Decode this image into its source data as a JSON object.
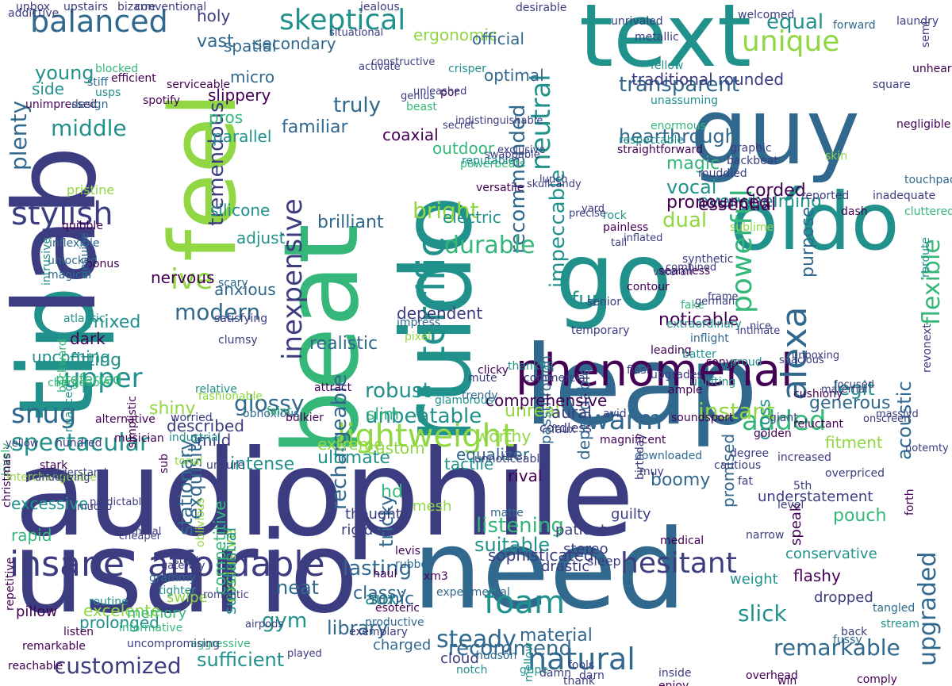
{
  "palette": {
    "dark_purple": "#440154",
    "indigo": "#3b3d80",
    "slate_blue": "#31688e",
    "teal": "#21918c",
    "sea_green": "#35b779",
    "light_green": "#90d743",
    "yellow": "#e6e419"
  },
  "words": [
    "audiophile",
    "usario",
    "need",
    "leap",
    "tip",
    "beat",
    "go",
    "text",
    "lab",
    "feel",
    "ruido",
    "guy",
    "oído",
    "phenomenal",
    "inexpensive",
    "affordable",
    "insane",
    "lightweight",
    "balanced",
    "skeptical",
    "unique",
    "neutral",
    "recommended",
    "durable",
    "powerful",
    "alexa",
    "remarkable",
    "natural",
    "foam",
    "hesitant",
    "stylish",
    "snug",
    "upper",
    "ive",
    "warm",
    "added",
    "spectacular",
    "customized",
    "upgraded",
    "terrific",
    "impeccable",
    "tremendous",
    "modern",
    "transparent",
    "hearthrough",
    "equal",
    "slick",
    "steady",
    "neat",
    "gym",
    "library",
    "tricky",
    "rechargeable",
    "glossy",
    "instant",
    "generous",
    "purpose",
    "pouch",
    "flexible",
    "acoustic",
    "unbeatable",
    "robust",
    "realistic",
    "brilliant",
    "bright",
    "dual",
    "fun",
    "lasting",
    "classy",
    "listening",
    "suitable",
    "sufficient",
    "recommend",
    "material",
    "aux",
    "plenty",
    "middle",
    "young",
    "side",
    "truly",
    "vocal",
    "magic",
    "overwhelming",
    "corded",
    "essential",
    "pronounced",
    "legit",
    "noticable",
    "mixed",
    "dark",
    "fitting",
    "nervous",
    "adjust",
    "silicone",
    "anxious",
    "familiar",
    "slim",
    "custom",
    "exquisite",
    "stationary",
    "excessive",
    "rapid",
    "boomy",
    "fitment",
    "intense",
    "mild",
    "described",
    "equalizer",
    "ultimate",
    "sonic",
    "excelente",
    "prolonged",
    "competitive",
    "exclusive",
    "substantial",
    "shiny",
    "preferred",
    "upcoming",
    "traditional",
    "rounded",
    "holy",
    "vast",
    "slippery",
    "outdoor",
    "ergonomic",
    "official",
    "electric",
    "coaxial",
    "secondary",
    "pros",
    "parallel",
    "micro",
    "spatial",
    "optimal",
    "dependent",
    "unreal",
    "extreme",
    "worthy",
    "tactile",
    "rival",
    "hd",
    "thought",
    "rigid",
    "mesh",
    "dependable",
    "passthrough",
    "sophisticated",
    "cross",
    "understatement",
    "promised",
    "conservative",
    "patient",
    "stereo",
    "sleep",
    "drastic",
    "guilty",
    "flashy",
    "dropped",
    "weight",
    "speak",
    "charged",
    "cloud",
    "memory",
    "swipe",
    "pillow",
    "lovely",
    "christmas",
    "interchangeable",
    "repetitive",
    "reachable",
    "unimpressed",
    "design",
    "usps",
    "blocked",
    "stiff",
    "efficient",
    "spotify",
    "serviceable",
    "crisper",
    "por",
    "beast",
    "pristine",
    "quibble",
    "inflexible",
    "unlocked",
    "magical",
    "bonus",
    "genuine",
    "atlantic",
    "intrusive",
    "nuanced",
    "backward",
    "chargeable",
    "simplistic",
    "oblivious",
    "scary",
    "satisfying",
    "clumsy",
    "sub",
    "tonal",
    "industrial",
    "fashionable",
    "obnoxious",
    "comprehensive",
    "aural",
    "cordless",
    "unsure",
    "relative",
    "worried",
    "alternative",
    "musician",
    "stark",
    "hundred",
    "aggressive",
    "faint",
    "bulkier",
    "glamorous",
    "attract",
    "mute",
    "trendy",
    "clicky",
    "thankful",
    "faux",
    "commercial",
    "avid",
    "matte",
    "levis",
    "rubber",
    "xm3",
    "experimental",
    "haul",
    "productive",
    "esoteric",
    "exemplary",
    "hudson",
    "notch",
    "gripe",
    "damn",
    "mellow",
    "inside",
    "fools",
    "thank",
    "tighter",
    "grammy",
    "routine",
    "informative",
    "uncompromising",
    "listen",
    "remarkable",
    "unnoticeable",
    "downloaded",
    "muy",
    "birthday",
    "medical",
    "magnificent",
    "soundsport",
    "flash",
    "leading",
    "upgrades",
    "extraordinary",
    "uplifting",
    "sonys",
    "ample",
    "proud",
    "cushiony",
    "fake",
    "impress",
    "pixel",
    "versatile",
    "powerbeats",
    "reputable",
    "rock",
    "painless",
    "respectable",
    "straightforward",
    "enormous",
    "unassuming",
    "fellow",
    "metallic",
    "unrivaled",
    "desirable",
    "jealous",
    "upstairs",
    "bizarre",
    "conventional",
    "addictive",
    "unbox",
    "welcomed",
    "forward",
    "laundry",
    "semi",
    "senior",
    "temporary",
    "contour",
    "seamless",
    "inflight",
    "batter",
    "synthetic",
    "skin",
    "graphic",
    "muddied",
    "backbeat",
    "sublime",
    "reported",
    "dash",
    "inadequate",
    "touchpad",
    "cluttered",
    "negligible",
    "square",
    "unheard",
    "reroute",
    "revonext",
    "forth",
    "stream",
    "tangled",
    "fussy",
    "back",
    "comply",
    "overhead",
    "darn",
    "enjoy",
    "win",
    "narrow",
    "level",
    "5th",
    "fat",
    "overpriced",
    "increased",
    "giant",
    "reluctant",
    "golden",
    "degree",
    "cautious",
    "activate",
    "genius",
    "secret",
    "swappable",
    "skullcandy",
    "precise",
    "tall",
    "veteran",
    "german",
    "intimate",
    "spacious",
    "maternal",
    "onscreen",
    "notemty",
    "underlying",
    "mucho",
    "cheaper",
    "gateway",
    "romantic",
    "airpods",
    "played",
    "situational",
    "constructive",
    "unleashed",
    "indistinguishable",
    "exclusive",
    "lunch",
    "yard",
    "inflated",
    "combined",
    "frame",
    "nice",
    "unboxing",
    "focused",
    "massivd",
    "yellow",
    "understand",
    "predictable",
    "metal",
    "steal"
  ]
}
